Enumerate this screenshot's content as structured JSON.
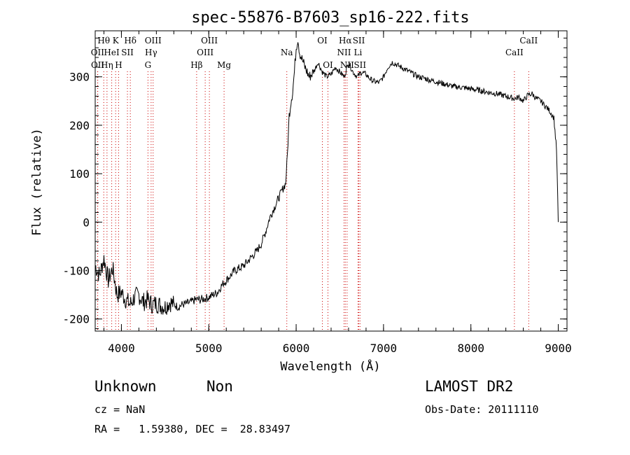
{
  "chart_data": {
    "type": "line",
    "title": "spec-55876-B7603_sp16-222.fits",
    "xlabel": "Wavelength (Å)",
    "ylabel": "Flux (relative)",
    "xlim": [
      3700,
      9100
    ],
    "ylim": [
      -225,
      395
    ],
    "xticks": [
      4000,
      5000,
      6000,
      7000,
      8000,
      9000
    ],
    "yticks": [
      -200,
      -100,
      0,
      100,
      200,
      300
    ],
    "grid": false,
    "line_color": "#000000",
    "marker_color": "#cc0000",
    "series": [
      {
        "x": [
          3700,
          3750,
          3800,
          3850,
          3900,
          3950,
          4000,
          4050,
          4100,
          4150,
          4200,
          4250,
          4300,
          4350,
          4400,
          4450,
          4500,
          4550,
          4600,
          4650,
          4700,
          4750,
          4800,
          4850,
          4900,
          4950,
          5000,
          5050,
          5100,
          5150,
          5200,
          5250,
          5300,
          5350,
          5400,
          5450,
          5500,
          5550,
          5600,
          5650,
          5700,
          5750,
          5800,
          5850,
          5880,
          5900,
          5920,
          5940,
          5960,
          5980,
          6000,
          6020,
          6040,
          6060,
          6080,
          6100,
          6150,
          6200,
          6250,
          6300,
          6350,
          6400,
          6450,
          6500,
          6550,
          6600,
          6650,
          6700,
          6750,
          6800,
          6850,
          6900,
          6950,
          7000,
          7050,
          7100,
          7150,
          7200,
          7250,
          7300,
          7350,
          7400,
          7450,
          7500,
          7600,
          7700,
          7800,
          7900,
          8000,
          8100,
          8200,
          8300,
          8400,
          8500,
          8550,
          8600,
          8650,
          8700,
          8750,
          8800,
          8850,
          8900,
          8950,
          8980,
          9000
        ],
        "y": [
          -90,
          -110,
          -75,
          -120,
          -95,
          -150,
          -145,
          -160,
          -170,
          -155,
          -150,
          -165,
          -160,
          -170,
          -168,
          -172,
          -175,
          -165,
          -170,
          -175,
          -170,
          -168,
          -165,
          -160,
          -160,
          -158,
          -155,
          -150,
          -145,
          -130,
          -120,
          -110,
          -100,
          -95,
          -90,
          -80,
          -70,
          -60,
          -45,
          -20,
          10,
          30,
          50,
          70,
          80,
          140,
          220,
          250,
          270,
          310,
          360,
          380,
          350,
          340,
          330,
          320,
          300,
          310,
          330,
          310,
          300,
          305,
          320,
          310,
          300,
          330,
          310,
          300,
          310,
          305,
          295,
          290,
          288,
          300,
          320,
          330,
          325,
          320,
          315,
          310,
          305,
          300,
          298,
          295,
          290,
          285,
          280,
          278,
          275,
          272,
          268,
          265,
          260,
          255,
          258,
          250,
          262,
          265,
          255,
          250,
          240,
          230,
          215,
          150,
          0
        ]
      }
    ],
    "lines": [
      {
        "label": "Hθ",
        "x": 3798,
        "row": 1
      },
      {
        "label": "OII",
        "x": 3727,
        "row": 2
      },
      {
        "label": "OII",
        "x": 3729,
        "row": 3
      },
      {
        "label": "Hη",
        "x": 3835,
        "row": 3
      },
      {
        "label": "HeI",
        "x": 3889,
        "row": 2
      },
      {
        "label": "K",
        "x": 3934,
        "row": 1
      },
      {
        "label": "H",
        "x": 3968,
        "row": 3
      },
      {
        "label": "SII",
        "x": 4069,
        "row": 2
      },
      {
        "label": "Hδ",
        "x": 4102,
        "row": 1
      },
      {
        "label": "OIII",
        "x": 4363,
        "row": 1
      },
      {
        "label": "Hγ",
        "x": 4340,
        "row": 2
      },
      {
        "label": "G",
        "x": 4304,
        "row": 3
      },
      {
        "label": "Hβ",
        "x": 4861,
        "row": 3
      },
      {
        "label": "OIII",
        "x": 4959,
        "row": 2
      },
      {
        "label": "OIII",
        "x": 5007,
        "row": 1
      },
      {
        "label": "Mg",
        "x": 5175,
        "row": 3
      },
      {
        "label": "Na",
        "x": 5893,
        "row": 2
      },
      {
        "label": "OI",
        "x": 6300,
        "row": 1
      },
      {
        "label": "OI",
        "x": 6364,
        "row": 3
      },
      {
        "label": "NII",
        "x": 6548,
        "row": 2
      },
      {
        "label": "Hα",
        "x": 6563,
        "row": 1
      },
      {
        "label": "NII",
        "x": 6583,
        "row": 3
      },
      {
        "label": "Li",
        "x": 6708,
        "row": 2
      },
      {
        "label": "SII",
        "x": 6717,
        "row": 1
      },
      {
        "label": "SII",
        "x": 6731,
        "row": 3
      },
      {
        "label": "CaII",
        "x": 8498,
        "row": 2
      },
      {
        "label": "CaII",
        "x": 8662,
        "row": 1
      }
    ]
  },
  "info": {
    "class_label": "Unknown",
    "subclass_label": "Non",
    "survey": "LAMOST DR2",
    "cz": "cz = NaN",
    "obs_date": "Obs-Date: 20111110",
    "radec": "RA =   1.59380, DEC =  28.83497"
  }
}
